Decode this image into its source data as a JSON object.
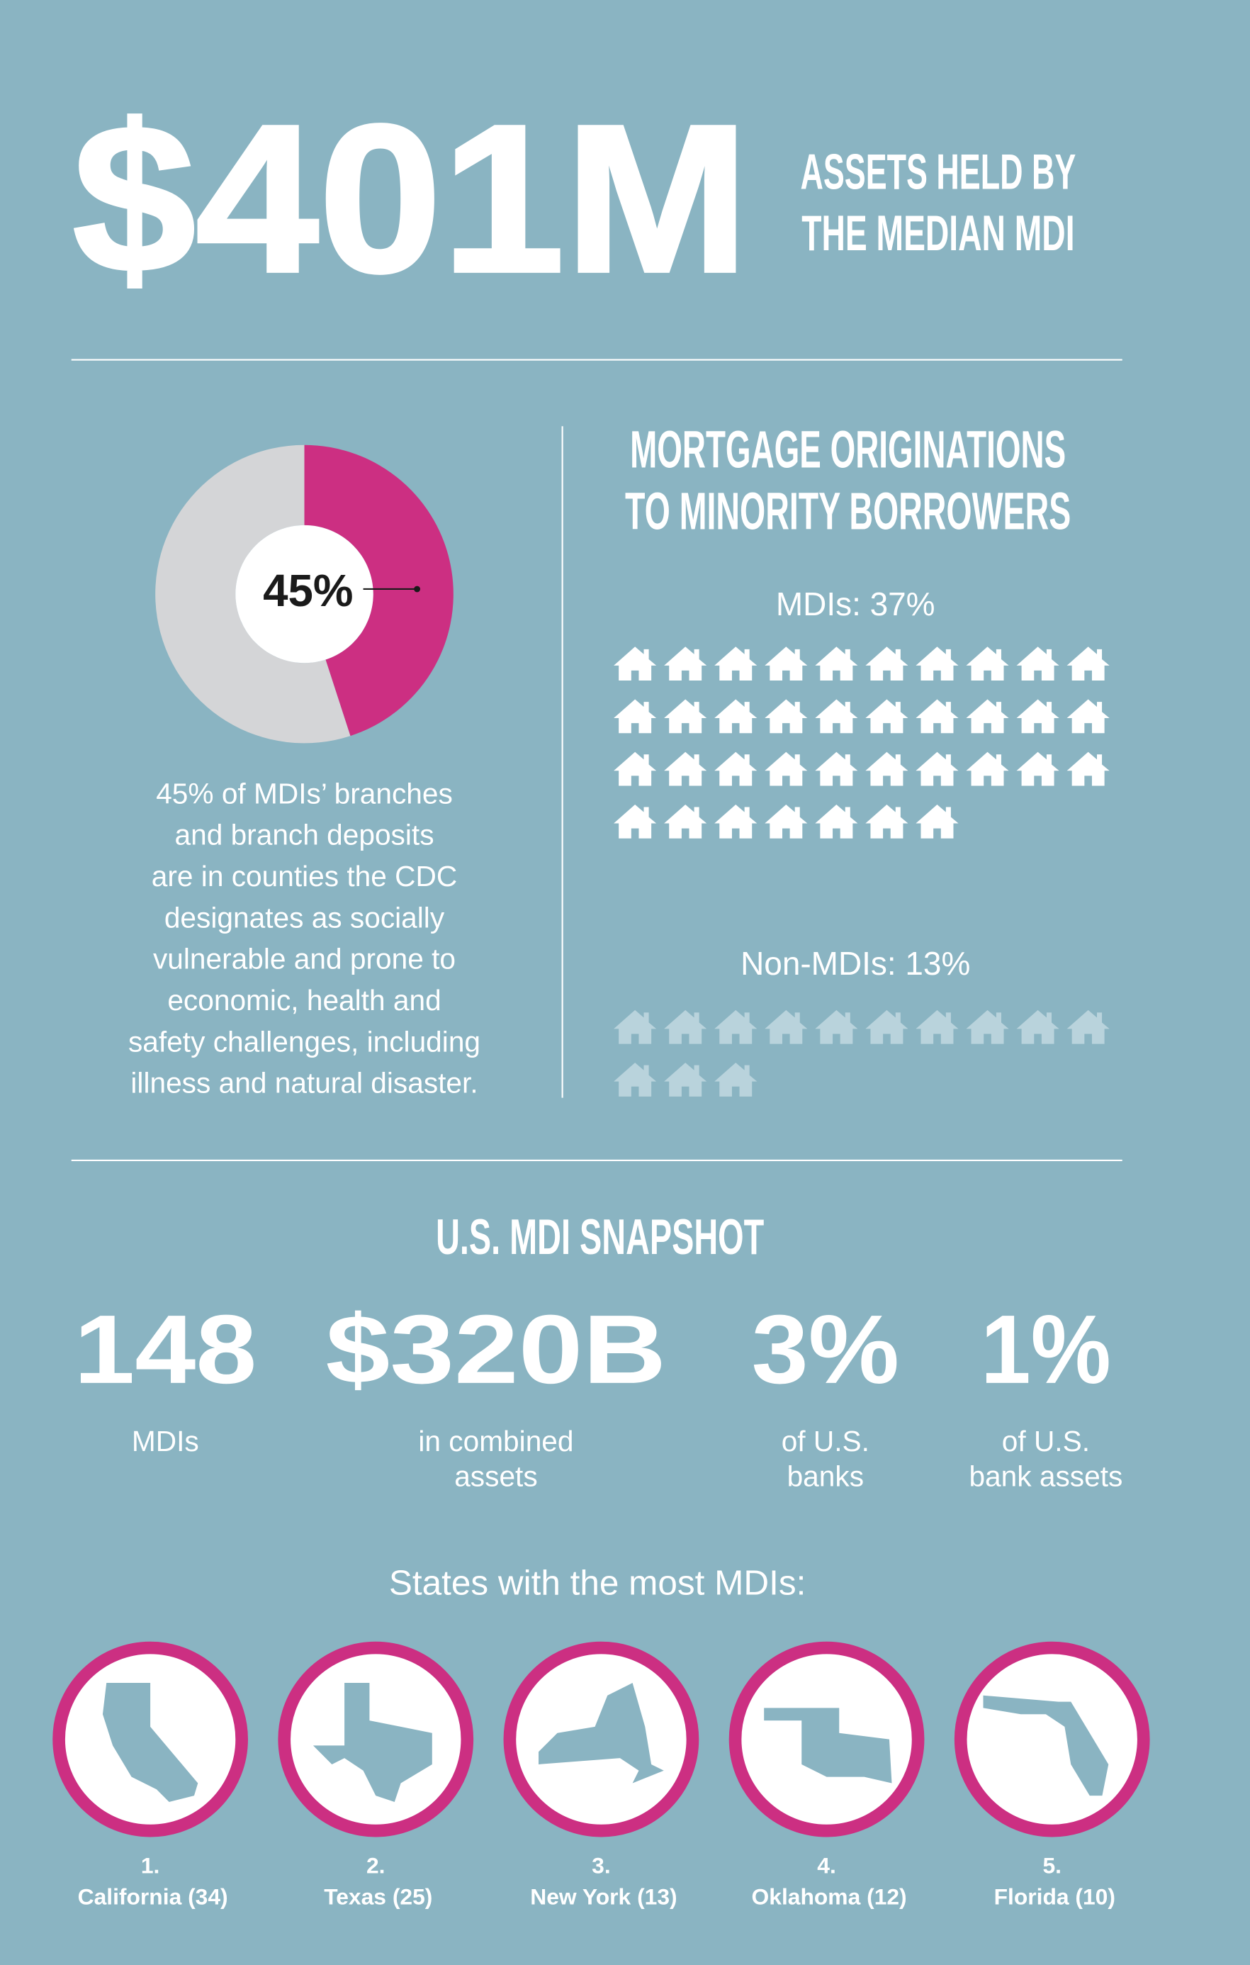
{
  "hero": {
    "value": "$401M",
    "label_lines": [
      "ASSETS HELD BY",
      "THE MEDIAN MDI"
    ]
  },
  "branches": {
    "value": 45,
    "label": "45%",
    "text_lines": [
      "45% of MDIs’ branches",
      "and branch deposits",
      "are in counties the CDC",
      "designates as socially",
      "vulnerable and prone to",
      "economic, health and",
      "safety challenges, including",
      "illness and natural disaster."
    ]
  },
  "mortgage": {
    "title_lines": [
      "MORTGAGE ORIGINATIONS",
      "TO MINORITY BORROWERS"
    ],
    "groups": [
      {
        "label": "MDIs: 37%",
        "value": 37
      },
      {
        "label": "Non-MDIs: 13%",
        "value": 13
      }
    ]
  },
  "snapshot": {
    "title": "U.S. MDI SNAPSHOT",
    "stats": [
      {
        "value": "148",
        "label_lines": [
          "MDIs"
        ]
      },
      {
        "value": "$320B",
        "label_lines": [
          "in combined",
          "assets"
        ]
      },
      {
        "value": "3%",
        "label_lines": [
          "of U.S.",
          "banks"
        ]
      },
      {
        "value": "1%",
        "label_lines": [
          "of U.S.",
          "bank assets"
        ]
      }
    ]
  },
  "states": {
    "title": "States with the most MDIs:",
    "items": [
      {
        "rank": "1.",
        "name": "California (34)"
      },
      {
        "rank": "2.",
        "name": "Texas (25)"
      },
      {
        "rank": "3.",
        "name": "New York (13)"
      },
      {
        "rank": "4.",
        "name": "Oklahoma (12)"
      },
      {
        "rank": "5.",
        "name": "Florida (10)"
      }
    ]
  }
}
